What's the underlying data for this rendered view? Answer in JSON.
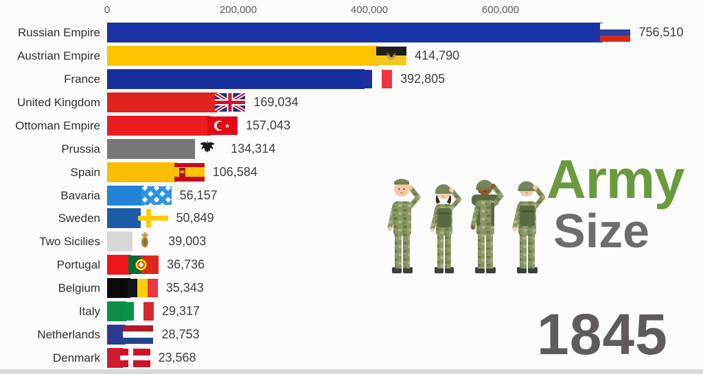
{
  "chart_data": {
    "type": "bar",
    "orientation": "horizontal",
    "title": "Army Size",
    "year": "1845",
    "x_axis": {
      "position": "top",
      "ticks": [
        {
          "label": "0",
          "value": 0
        },
        {
          "label": "200,000",
          "value": 200000
        },
        {
          "label": "400,000",
          "value": 400000
        },
        {
          "label": "600,000",
          "value": 600000
        }
      ]
    },
    "bars": [
      {
        "label": "Russian Empire",
        "value": 756510,
        "value_label": "756,510",
        "color": "#1733A6",
        "flag": "russia"
      },
      {
        "label": "Austrian Empire",
        "value": 414790,
        "value_label": "414,790",
        "color": "#FCC400",
        "flag": "austria"
      },
      {
        "label": "France",
        "value": 392805,
        "value_label": "392,805",
        "color": "#152F9D",
        "flag": "france"
      },
      {
        "label": "United Kingdom",
        "value": 169034,
        "value_label": "169,034",
        "color": "#DF231F",
        "flag": "uk"
      },
      {
        "label": "Ottoman Empire",
        "value": 157043,
        "value_label": "157,043",
        "color": "#EC1C23",
        "flag": "ottoman"
      },
      {
        "label": "Prussia",
        "value": 134314,
        "value_label": "134,314",
        "color": "#777777",
        "flag": "prussia"
      },
      {
        "label": "Spain",
        "value": 106584,
        "value_label": "106,584",
        "color": "#FBBD00",
        "flag": "spain"
      },
      {
        "label": "Bavaria",
        "value": 56157,
        "value_label": "56,157",
        "color": "#2283D6",
        "flag": "bavaria"
      },
      {
        "label": "Sweden",
        "value": 50849,
        "value_label": "50,849",
        "color": "#1B5CA8",
        "flag": "sweden"
      },
      {
        "label": "Two Sicilies",
        "value": 39003,
        "value_label": "39,003",
        "color": "#D8D8D8",
        "flag": "two_sicilies"
      },
      {
        "label": "Portugal",
        "value": 36736,
        "value_label": "36,736",
        "color": "#F0151A",
        "flag": "portugal"
      },
      {
        "label": "Belgium",
        "value": 35343,
        "value_label": "35,343",
        "color": "#0A0A0A",
        "flag": "belgium"
      },
      {
        "label": "Italy",
        "value": 29317,
        "value_label": "29,317",
        "color": "#0E8C46",
        "flag": "italy"
      },
      {
        "label": "Netherlands",
        "value": 28753,
        "value_label": "28,753",
        "color": "#2A3B8F",
        "flag": "netherlands"
      },
      {
        "label": "Denmark",
        "value": 23568,
        "value_label": "23,568",
        "color": "#D11A32",
        "flag": "denmark"
      }
    ]
  },
  "logo": {
    "title_primary": "Army",
    "title_secondary": "Size",
    "primary_color": "#699B3E",
    "secondary_color": "#6D6D6D",
    "icon": "soldiers-illustration"
  },
  "year_label": {
    "text": "1845",
    "color": "#5F5B5B"
  }
}
